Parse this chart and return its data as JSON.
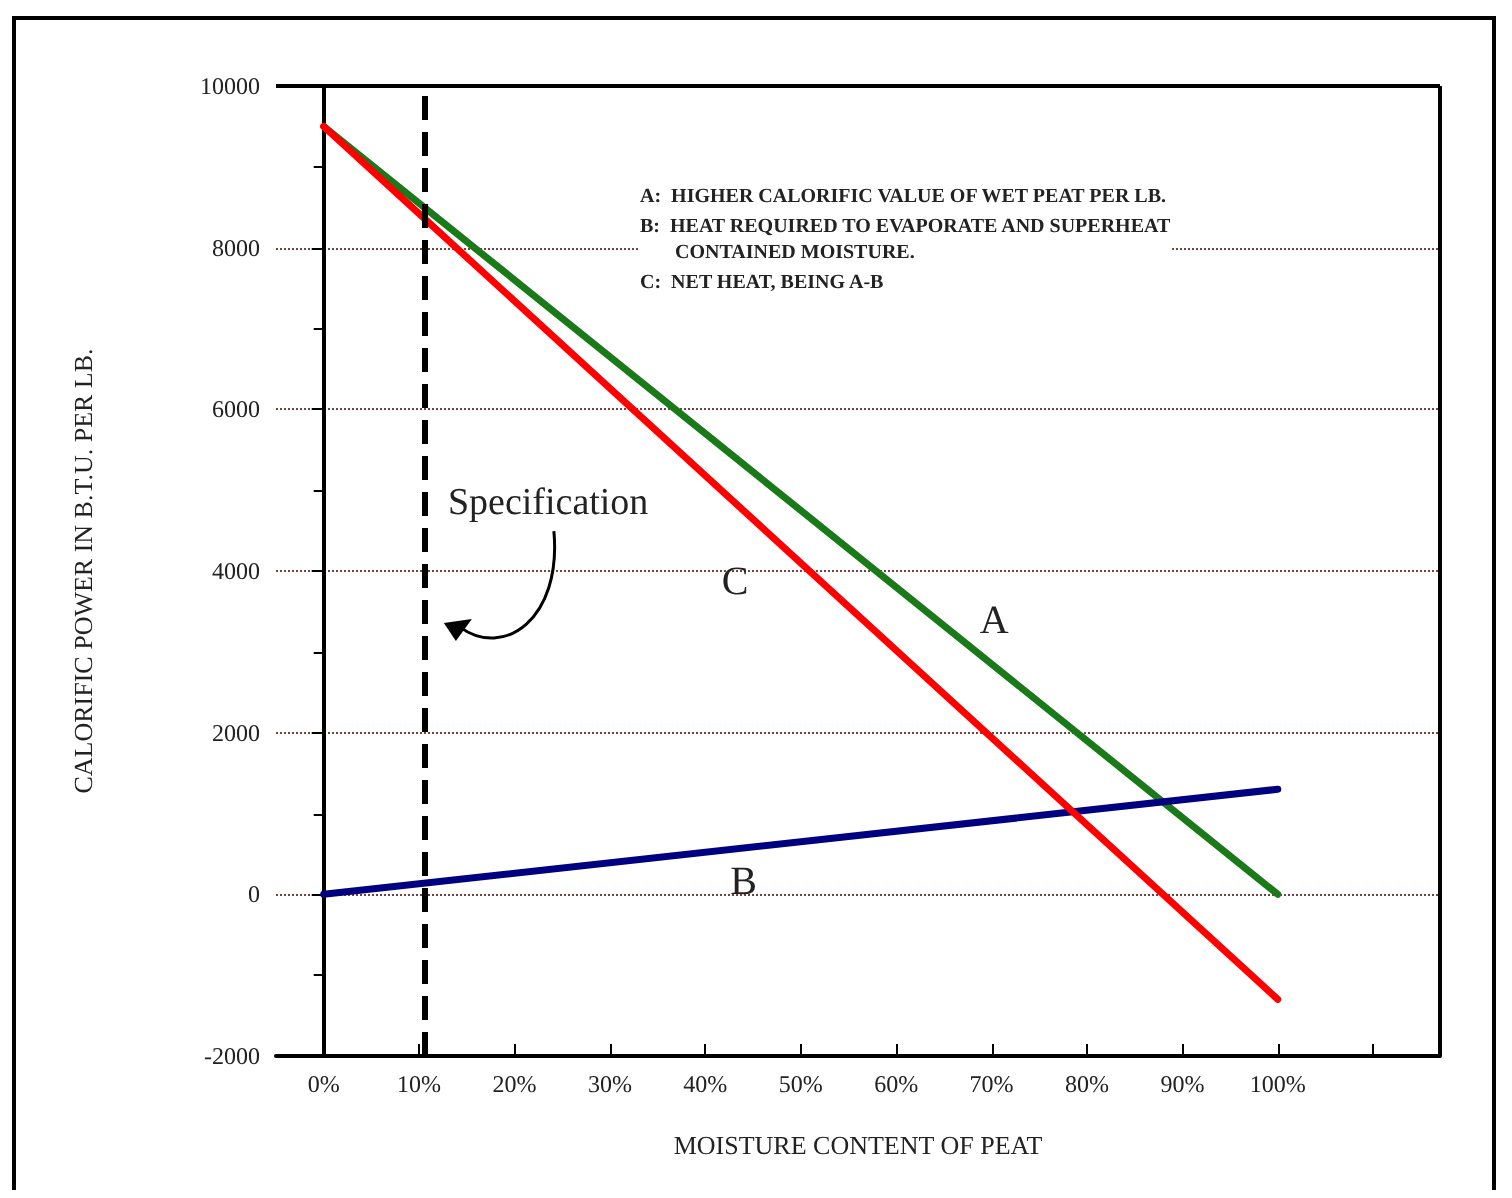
{
  "chart_data": {
    "type": "line",
    "xlabel": "MOISTURE CONTENT OF PEAT",
    "ylabel": "CALORIFIC POWER IN B.T.U. PER LB.",
    "xlim": [
      -5,
      117
    ],
    "xticks": [
      {
        "value": 0,
        "label": "0%"
      },
      {
        "value": 10,
        "label": "10%"
      },
      {
        "value": 20,
        "label": "20%"
      },
      {
        "value": 30,
        "label": "30%"
      },
      {
        "value": 40,
        "label": "40%"
      },
      {
        "value": 50,
        "label": "50%"
      },
      {
        "value": 60,
        "label": "60%"
      },
      {
        "value": 70,
        "label": "70%"
      },
      {
        "value": 80,
        "label": "80%"
      },
      {
        "value": 90,
        "label": "90%"
      },
      {
        "value": 100,
        "label": "100%"
      },
      {
        "value": 110,
        "label": null
      }
    ],
    "ylim": [
      -2000,
      10000
    ],
    "yticks": [
      -2000,
      0,
      2000,
      4000,
      6000,
      8000,
      10000
    ],
    "grid": "y",
    "marker": "none",
    "line_style": "solid",
    "series": [
      {
        "name": "A",
        "color": "#1a7a1a",
        "values": [
          9500,
          0
        ]
      },
      {
        "name": "B",
        "color": "#000080",
        "values": [
          0,
          1300
        ]
      },
      {
        "name": "C",
        "color": "#ff0000",
        "values": [
          9500,
          -1300
        ]
      }
    ],
    "ref_lines": [
      {
        "axis": "x",
        "value": 10.5,
        "label": "Specification",
        "color": "#000000",
        "line_style": "dashed"
      }
    ],
    "x": [
      0,
      100
    ],
    "annotations": [
      "A:  HIGHER CALORIFIC VALUE OF WET PEAT PER LB.",
      "B:  HEAT REQUIRED TO EVAPORATE AND SUPERHEAT\n       CONTAINED MOISTURE.",
      "C:  NET HEAT, BEING A-B"
    ]
  }
}
